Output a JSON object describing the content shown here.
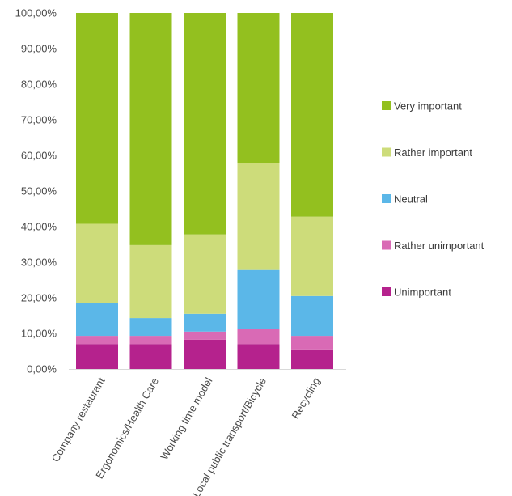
{
  "chart_data": {
    "type": "bar",
    "stacked": true,
    "categories": [
      "Company restaurant",
      "Ergonomics/Health Care",
      "Working time model",
      "Local public transport/Bicycle",
      "Recycling"
    ],
    "series": [
      {
        "name": "Unimportant",
        "color": "#b5228d",
        "values": [
          7.0,
          7.0,
          8.2,
          7.0,
          5.5
        ]
      },
      {
        "name": "Rather unimportant",
        "color": "#d96ab5",
        "values": [
          2.3,
          2.3,
          2.3,
          4.3,
          3.8
        ]
      },
      {
        "name": "Neutral",
        "color": "#5bb7e8",
        "values": [
          9.2,
          5.0,
          5.0,
          16.5,
          11.2
        ]
      },
      {
        "name": "Rather important",
        "color": "#cddc7a",
        "values": [
          22.3,
          20.5,
          22.3,
          30.0,
          22.3
        ]
      },
      {
        "name": "Very important",
        "color": "#93c01f",
        "values": [
          59.2,
          65.2,
          62.2,
          42.2,
          57.2
        ]
      }
    ],
    "yticks": [
      "0,00%",
      "10,00%",
      "20,00%",
      "30,00%",
      "40,00%",
      "50,00%",
      "60,00%",
      "70,00%",
      "80,00%",
      "90,00%",
      "100,00%"
    ],
    "ylim": [
      0,
      100
    ],
    "legend_position": "right",
    "legend_order": [
      "Very important",
      "Rather important",
      "Neutral",
      "Rather unimportant",
      "Unimportant"
    ],
    "grid": false
  }
}
